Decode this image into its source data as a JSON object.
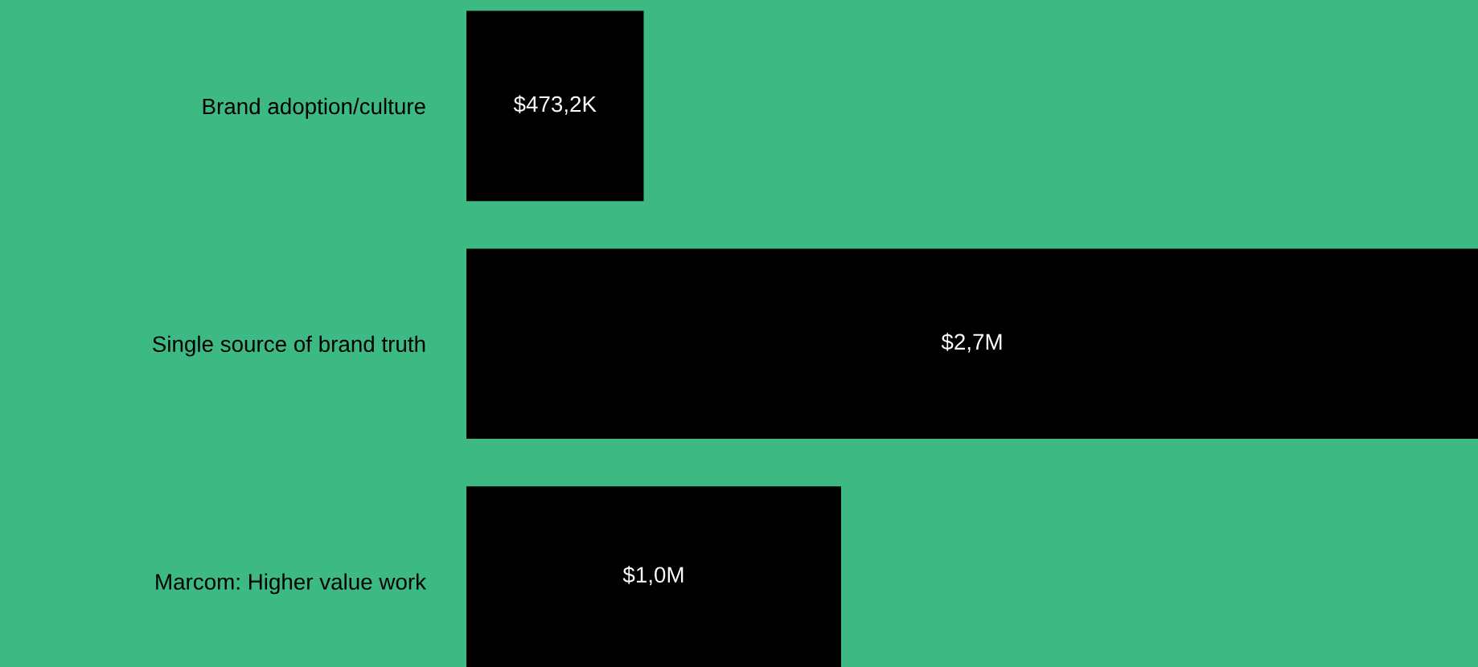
{
  "chart_data": {
    "type": "bar",
    "orientation": "horizontal",
    "categories": [
      "Brand adoption/culture",
      "Single source of brand truth",
      "Marcom: Higher value work"
    ],
    "values": [
      473200,
      2700000,
      1000000
    ],
    "value_labels": [
      "$473,2K",
      "$2,7M",
      "$1,0M"
    ],
    "color": "#000000"
  }
}
